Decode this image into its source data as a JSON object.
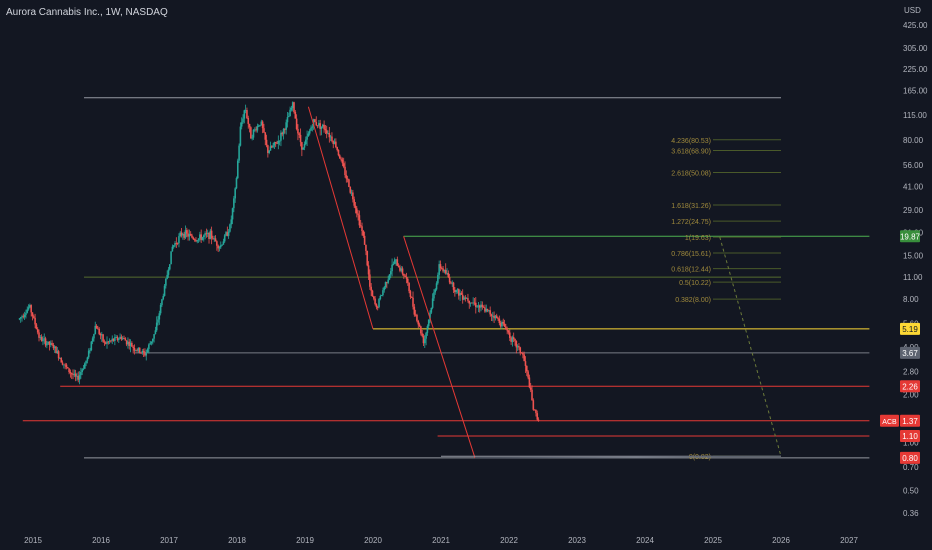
{
  "header": {
    "title": "Aurora Cannabis Inc., 1W, NASDAQ",
    "currency": "USD"
  },
  "colors": {
    "background": "#131722",
    "up": "#26a69a",
    "down": "#ef5350",
    "axis_text": "#b2b5be",
    "fib_text": "#a08a3c",
    "fib_line": "#4a5a2a",
    "trend": "#e53935"
  },
  "chart_data": {
    "type": "candlestick",
    "scale": "log",
    "ylim": [
      0.31,
      520
    ],
    "x_range": [
      2014.85,
      2027.3
    ],
    "x_ticks": [
      {
        "label": "2015",
        "x": 2015
      },
      {
        "label": "2016",
        "x": 2016
      },
      {
        "label": "2017",
        "x": 2017
      },
      {
        "label": "2018",
        "x": 2018
      },
      {
        "label": "2019",
        "x": 2019
      },
      {
        "label": "2020",
        "x": 2020
      },
      {
        "label": "2021",
        "x": 2021
      },
      {
        "label": "2022",
        "x": 2022
      },
      {
        "label": "2023",
        "x": 2023
      },
      {
        "label": "2024",
        "x": 2024
      },
      {
        "label": "2025",
        "x": 2025
      },
      {
        "label": "2026",
        "x": 2026
      },
      {
        "label": "2027",
        "x": 2027
      }
    ],
    "y_ticks": [
      "425.00",
      "305.00",
      "225.00",
      "165.00",
      "115.00",
      "80.00",
      "56.00",
      "41.00",
      "29.00",
      "21.00",
      "15.00",
      "11.00",
      "8.00",
      "5.60",
      "4.00",
      "2.80",
      "2.00",
      "1.00",
      "0.70",
      "0.50",
      "0.36"
    ],
    "price_path": [
      [
        2014.8,
        6.0
      ],
      [
        2014.95,
        7.2
      ],
      [
        2015.1,
        4.5
      ],
      [
        2015.3,
        4.0
      ],
      [
        2015.5,
        2.9
      ],
      [
        2015.65,
        2.5
      ],
      [
        2015.8,
        3.4
      ],
      [
        2015.92,
        5.5
      ],
      [
        2016.05,
        4.2
      ],
      [
        2016.3,
        4.6
      ],
      [
        2016.5,
        3.9
      ],
      [
        2016.65,
        3.6
      ],
      [
        2016.8,
        5.0
      ],
      [
        2016.95,
        10.2
      ],
      [
        2017.05,
        17.0
      ],
      [
        2017.2,
        21.0
      ],
      [
        2017.4,
        19.0
      ],
      [
        2017.6,
        20.5
      ],
      [
        2017.75,
        17.0
      ],
      [
        2017.9,
        23.0
      ],
      [
        2017.98,
        40.0
      ],
      [
        2018.05,
        95.0
      ],
      [
        2018.12,
        130.0
      ],
      [
        2018.2,
        85.0
      ],
      [
        2018.35,
        105.0
      ],
      [
        2018.45,
        68.0
      ],
      [
        2018.6,
        78.0
      ],
      [
        2018.72,
        100.0
      ],
      [
        2018.82,
        135.0
      ],
      [
        2018.9,
        88.0
      ],
      [
        2018.97,
        70.0
      ],
      [
        2019.12,
        105.0
      ],
      [
        2019.3,
        95.0
      ],
      [
        2019.45,
        75.0
      ],
      [
        2019.6,
        48.0
      ],
      [
        2019.75,
        30.0
      ],
      [
        2019.88,
        18.0
      ],
      [
        2019.96,
        9.0
      ],
      [
        2020.05,
        7.0
      ],
      [
        2020.2,
        10.5
      ],
      [
        2020.32,
        14.0
      ],
      [
        2020.48,
        11.0
      ],
      [
        2020.62,
        6.5
      ],
      [
        2020.75,
        4.3
      ],
      [
        2020.88,
        8.0
      ],
      [
        2020.98,
        13.0
      ],
      [
        2021.08,
        11.5
      ],
      [
        2021.22,
        9.0
      ],
      [
        2021.4,
        8.0
      ],
      [
        2021.6,
        7.0
      ],
      [
        2021.78,
        6.3
      ],
      [
        2021.95,
        5.3
      ],
      [
        2022.05,
        4.4
      ],
      [
        2022.2,
        3.6
      ],
      [
        2022.3,
        2.3
      ],
      [
        2022.36,
        1.6
      ],
      [
        2022.45,
        1.37
      ]
    ],
    "last_price": "1.37",
    "ticker": "ACB",
    "price_labels": [
      {
        "value": "19.87",
        "price": 19.87,
        "color": "#388e3c",
        "text_color": "#ffffff"
      },
      {
        "value": "5.19",
        "price": 5.19,
        "color": "#fdd835",
        "text_color": "#131722"
      },
      {
        "value": "3.67",
        "price": 3.67,
        "color": "#5d6370",
        "text_color": "#ffffff"
      },
      {
        "value": "2.26",
        "price": 2.26,
        "color": "#e53935",
        "text_color": "#ffffff"
      },
      {
        "value": "1.37",
        "price": 1.37,
        "color": "#e53935",
        "text_color": "#ffffff"
      },
      {
        "value": "1.10",
        "price": 1.1,
        "color": "#e53935",
        "text_color": "#ffffff"
      },
      {
        "value": "0.80",
        "price": 0.8,
        "color": "#e53935",
        "text_color": "#ffffff"
      }
    ],
    "horizontal_levels": [
      {
        "price": 148,
        "x0": 2015.75,
        "x1": 2026.0,
        "color": "#9598a1"
      },
      {
        "price": 11.0,
        "x0": 2015.75,
        "x1": 2026.0,
        "color": "#556b2f"
      },
      {
        "price": 19.87,
        "x0": 2020.45,
        "x1": 2027.3,
        "color": "#4caf50"
      },
      {
        "price": 5.19,
        "x0": 2020.0,
        "x1": 2027.3,
        "color": "#fdd835"
      },
      {
        "price": 3.67,
        "x0": 2016.5,
        "x1": 2027.3,
        "color": "#787b86"
      },
      {
        "price": 2.26,
        "x0": 2015.4,
        "x1": 2027.3,
        "color": "#e53935"
      },
      {
        "price": 1.37,
        "x0": 2014.85,
        "x1": 2027.3,
        "color": "#e53935"
      },
      {
        "price": 1.1,
        "x0": 2020.95,
        "x1": 2027.3,
        "color": "#e53935"
      },
      {
        "price": 0.8,
        "x0": 2015.75,
        "x1": 2027.3,
        "color": "#9598a1"
      }
    ],
    "trend_lines": [
      {
        "from": [
          2019.05,
          130.0
        ],
        "to": [
          2020.0,
          5.19
        ],
        "color": "#e53935"
      },
      {
        "from": [
          2020.45,
          19.87
        ],
        "to": [
          2021.5,
          0.8
        ],
        "color": "#e53935"
      },
      {
        "from": [
          2021.0,
          0.82
        ],
        "to": [
          2026.0,
          0.82
        ],
        "color": "#9598a1"
      },
      {
        "from": [
          2021.5,
          0.8
        ],
        "to": [
          2026.0,
          0.82
        ],
        "color": "#5d6370"
      }
    ],
    "fib_levels": [
      {
        "label": "4.236(80.53)",
        "price": 80.53
      },
      {
        "label": "3.618(68.90)",
        "price": 68.9
      },
      {
        "label": "2.618(50.08)",
        "price": 50.08
      },
      {
        "label": "1.618(31.26)",
        "price": 31.26
      },
      {
        "label": "1.272(24.75)",
        "price": 24.75
      },
      {
        "label": "1(19.63)",
        "price": 19.63
      },
      {
        "label": "0.786(15.61)",
        "price": 15.61
      },
      {
        "label": "0.618(12.44)",
        "price": 12.44
      },
      {
        "label": "0.5(10.22)",
        "price": 10.22
      },
      {
        "label": "0.382(8.00)",
        "price": 8.0
      },
      {
        "label": "0(0.82)",
        "price": 0.82
      }
    ],
    "fib_x": [
      2025.0,
      2026.0
    ],
    "projection": {
      "from": [
        2025.1,
        19.63
      ],
      "to": [
        2026.0,
        0.82
      ]
    }
  }
}
